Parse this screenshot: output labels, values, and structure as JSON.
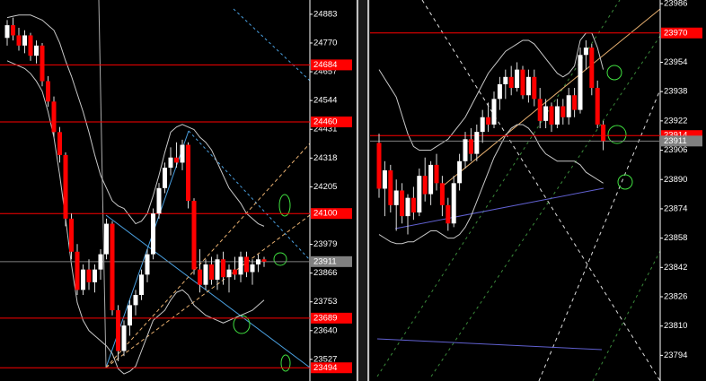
{
  "chart_data": [
    {
      "type": "candlestick",
      "ylim": [
        23442,
        24939
      ],
      "yticks": [
        24883,
        24770,
        24657,
        24544,
        24431,
        24318,
        24205,
        23979,
        23866,
        23753,
        23640,
        23527
      ],
      "levels": [
        24684,
        24460,
        24100,
        23689,
        23494
      ],
      "current": 23911,
      "up_color": "#ffffff",
      "down_color": "#ff0000",
      "level_color": "#ff0000",
      "current_color": "#808080",
      "ohlc": [
        [
          24790,
          24860,
          24760,
          24840
        ],
        [
          24840,
          24870,
          24780,
          24800
        ],
        [
          24800,
          24830,
          24740,
          24760
        ],
        [
          24760,
          24820,
          24730,
          24800
        ],
        [
          24800,
          24810,
          24700,
          24720
        ],
        [
          24720,
          24780,
          24690,
          24760
        ],
        [
          24760,
          24770,
          24600,
          24620
        ],
        [
          24620,
          24640,
          24520,
          24540
        ],
        [
          24540,
          24560,
          24400,
          24420
        ],
        [
          24420,
          24440,
          24300,
          24330
        ],
        [
          24330,
          24340,
          24050,
          24080
        ],
        [
          24080,
          24100,
          23920,
          23950
        ],
        [
          23950,
          23980,
          23780,
          23800
        ],
        [
          23800,
          23900,
          23780,
          23880
        ],
        [
          23880,
          23920,
          23800,
          23830
        ],
        [
          23830,
          23900,
          23790,
          23880
        ],
        [
          23880,
          23960,
          23840,
          23940
        ],
        [
          23940,
          24080,
          23920,
          24060
        ],
        [
          24060,
          24070,
          23700,
          23720
        ],
        [
          23720,
          23740,
          23520,
          23560
        ],
        [
          23560,
          23680,
          23540,
          23660
        ],
        [
          23660,
          23760,
          23620,
          23740
        ],
        [
          23740,
          23800,
          23700,
          23780
        ],
        [
          23780,
          23880,
          23760,
          23860
        ],
        [
          23860,
          23960,
          23830,
          23940
        ],
        [
          23940,
          24120,
          23920,
          24100
        ],
        [
          24100,
          24220,
          24080,
          24200
        ],
        [
          24200,
          24300,
          24180,
          24280
        ],
        [
          24280,
          24360,
          24250,
          24320
        ],
        [
          24320,
          24380,
          24280,
          24300
        ],
        [
          24300,
          24390,
          24270,
          24370
        ],
        [
          24370,
          24380,
          24120,
          24150
        ],
        [
          24150,
          24160,
          23860,
          23880
        ],
        [
          23880,
          23960,
          23790,
          23820
        ],
        [
          23820,
          23920,
          23800,
          23900
        ],
        [
          23900,
          23930,
          23820,
          23840
        ],
        [
          23840,
          23940,
          23800,
          23920
        ],
        [
          23920,
          23950,
          23820,
          23850
        ],
        [
          23850,
          23900,
          23790,
          23880
        ],
        [
          23880,
          23930,
          23840,
          23860
        ],
        [
          23860,
          23950,
          23830,
          23930
        ],
        [
          23930,
          23950,
          23850,
          23870
        ],
        [
          23870,
          23920,
          23820,
          23900
        ],
        [
          23900,
          23940,
          23870,
          23920
        ],
        [
          23920,
          23930,
          23890,
          23911
        ]
      ],
      "bands": [
        {
          "color": "#c8c8c8",
          "values": [
            24870,
            24875,
            24880,
            24880,
            24880,
            24870,
            24860,
            24840,
            24820,
            24770,
            24700,
            24640,
            24570,
            24500,
            24420,
            24330,
            24250,
            24200,
            24150,
            24130,
            24120,
            24090,
            24060,
            24070,
            24100,
            24170,
            24250,
            24340,
            24420,
            24440,
            24450,
            24440,
            24430,
            24400,
            24380,
            24350,
            24300,
            24250,
            24200,
            24170,
            24140,
            24100,
            24080,
            24060,
            24050
          ]
        },
        {
          "color": "#c8c8c8",
          "values": [
            24700,
            24690,
            24680,
            24670,
            24650,
            24620,
            24580,
            24500,
            24400,
            24250,
            24080,
            23900,
            23750,
            23680,
            23640,
            23620,
            23600,
            23580,
            23550,
            23490,
            23470,
            23480,
            23500,
            23560,
            23620,
            23680,
            23700,
            23720,
            23760,
            23790,
            23800,
            23780,
            23740,
            23720,
            23700,
            23690,
            23680,
            23670,
            23680,
            23690,
            23700,
            23710,
            23720,
            23740,
            23760
          ]
        }
      ]
    },
    {
      "type": "candlestick",
      "ylim": [
        23780,
        23988
      ],
      "yticks": [
        23986,
        23954,
        23938,
        23922,
        23906,
        23890,
        23874,
        23858,
        23842,
        23826,
        23810,
        23794
      ],
      "levels": [
        23970,
        23914
      ],
      "current": 23911,
      "up_color": "#ffffff",
      "down_color": "#ff0000",
      "level_color": "#ff0000",
      "current_color": "#808080",
      "ohlc": [
        [
          23910,
          23915,
          23880,
          23885
        ],
        [
          23885,
          23900,
          23870,
          23895
        ],
        [
          23895,
          23898,
          23872,
          23876
        ],
        [
          23876,
          23890,
          23862,
          23884
        ],
        [
          23884,
          23888,
          23866,
          23870
        ],
        [
          23870,
          23882,
          23860,
          23880
        ],
        [
          23880,
          23886,
          23868,
          23872
        ],
        [
          23872,
          23896,
          23870,
          23892
        ],
        [
          23892,
          23902,
          23878,
          23882
        ],
        [
          23882,
          23900,
          23876,
          23898
        ],
        [
          23898,
          23904,
          23884,
          23888
        ],
        [
          23888,
          23892,
          23870,
          23876
        ],
        [
          23876,
          23880,
          23862,
          23866
        ],
        [
          23866,
          23892,
          23864,
          23888
        ],
        [
          23888,
          23904,
          23884,
          23900
        ],
        [
          23900,
          23916,
          23896,
          23912
        ],
        [
          23912,
          23918,
          23900,
          23904
        ],
        [
          23904,
          23920,
          23900,
          23916
        ],
        [
          23916,
          23928,
          23910,
          23924
        ],
        [
          23924,
          23932,
          23916,
          23920
        ],
        [
          23920,
          23938,
          23918,
          23934
        ],
        [
          23934,
          23946,
          23928,
          23942
        ],
        [
          23942,
          23950,
          23934,
          23946
        ],
        [
          23946,
          23952,
          23936,
          23940
        ],
        [
          23940,
          23954,
          23938,
          23950
        ],
        [
          23950,
          23952,
          23934,
          23936
        ],
        [
          23936,
          23950,
          23932,
          23946
        ],
        [
          23946,
          23950,
          23930,
          23934
        ],
        [
          23934,
          23940,
          23918,
          23922
        ],
        [
          23922,
          23934,
          23918,
          23930
        ],
        [
          23930,
          23932,
          23916,
          23920
        ],
        [
          23920,
          23934,
          23918,
          23930
        ],
        [
          23930,
          23934,
          23920,
          23924
        ],
        [
          23924,
          23940,
          23920,
          23936
        ],
        [
          23936,
          23940,
          23924,
          23928
        ],
        [
          23928,
          23962,
          23926,
          23958
        ],
        [
          23958,
          23966,
          23950,
          23962
        ],
        [
          23962,
          23964,
          23936,
          23940
        ],
        [
          23940,
          23944,
          23918,
          23920
        ],
        [
          23920,
          23922,
          23906,
          23911
        ]
      ],
      "bands": [
        {
          "color": "#c8c8c8",
          "values": [
            23950,
            23945,
            23940,
            23935,
            23925,
            23915,
            23908,
            23906,
            23906,
            23906,
            23908,
            23910,
            23912,
            23916,
            23920,
            23924,
            23930,
            23936,
            23942,
            23948,
            23952,
            23956,
            23960,
            23962,
            23964,
            23966,
            23966,
            23964,
            23960,
            23956,
            23952,
            23948,
            23946,
            23948,
            23952,
            23966,
            23970,
            23970,
            23962,
            23950
          ]
        },
        {
          "color": "#c8c8c8",
          "values": [
            23860,
            23858,
            23856,
            23855,
            23855,
            23856,
            23856,
            23858,
            23860,
            23862,
            23862,
            23860,
            23858,
            23858,
            23860,
            23864,
            23870,
            23878,
            23886,
            23894,
            23902,
            23908,
            23914,
            23918,
            23920,
            23920,
            23918,
            23914,
            23908,
            23904,
            23902,
            23900,
            23900,
            23900,
            23900,
            23898,
            23894,
            23892,
            23890,
            23888
          ]
        }
      ]
    }
  ]
}
